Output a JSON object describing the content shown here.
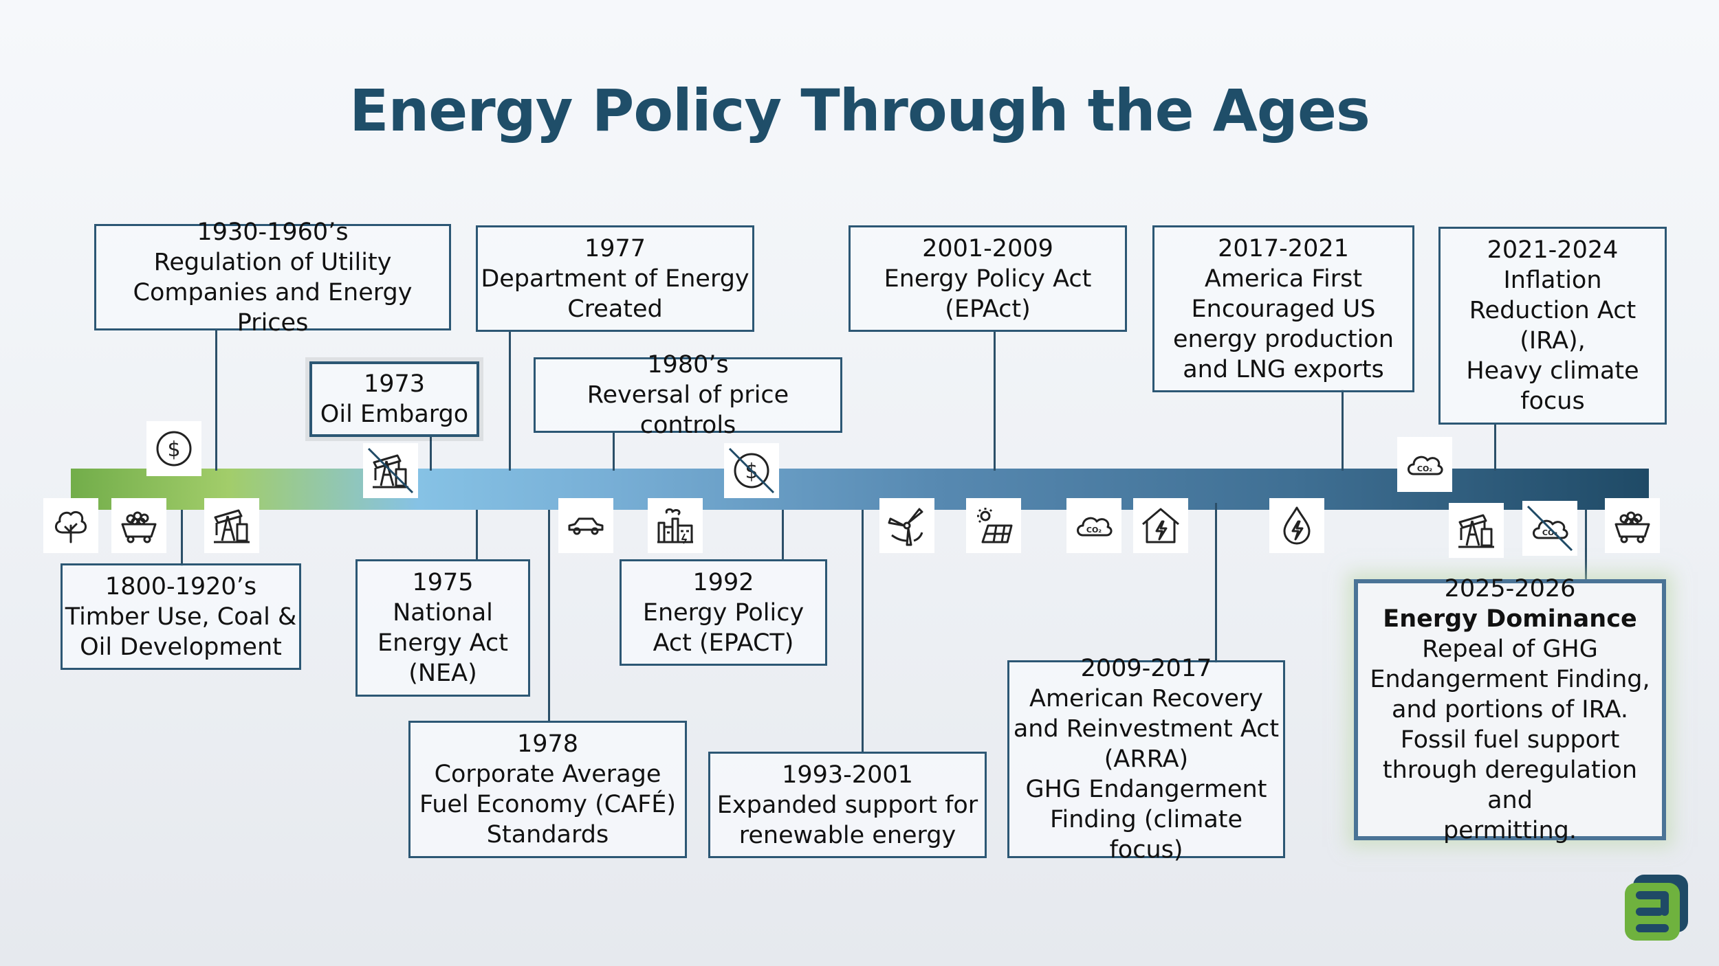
{
  "title": "Energy Policy Through the Ages",
  "events": {
    "e1800": {
      "date": "1800-1920’s",
      "lines": [
        "Timber Use, Coal &",
        "Oil Development"
      ]
    },
    "e1930": {
      "date": "1930-1960’s",
      "lines": [
        "Regulation of Utility",
        "Companies and Energy Prices"
      ]
    },
    "e1973": {
      "date": "1973",
      "lines": [
        "Oil Embargo"
      ]
    },
    "e1975": {
      "date": "1975",
      "lines": [
        "National",
        "Energy Act",
        "(NEA)"
      ]
    },
    "e1977": {
      "date": "1977",
      "lines": [
        "Department of Energy",
        "Created"
      ]
    },
    "e1978": {
      "date": "1978",
      "lines": [
        "Corporate Average",
        "Fuel Economy (CAFÉ)",
        "Standards"
      ]
    },
    "e1980": {
      "date": "1980’s",
      "lines": [
        "Reversal of price controls"
      ]
    },
    "e1992": {
      "date": "1992",
      "lines": [
        "Energy Policy",
        "Act (EPACT)"
      ]
    },
    "e1993": {
      "date": "1993-2001",
      "lines": [
        "Expanded support for",
        "renewable energy"
      ]
    },
    "e2001": {
      "date": "2001-2009",
      "lines": [
        "Energy Policy Act",
        "(EPAct)"
      ]
    },
    "e2009": {
      "date": "2009-2017",
      "lines": [
        "American Recovery",
        "and Reinvestment Act",
        "(ARRA)",
        "GHG Endangerment",
        "Finding (climate focus)"
      ]
    },
    "e2017": {
      "date": "2017-2021",
      "lines": [
        "America First",
        "Encouraged US",
        "energy production",
        "and LNG exports"
      ]
    },
    "e2021": {
      "date": "2021-2024",
      "lines": [
        "Inflation",
        "Reduction Act",
        "(IRA),",
        "Heavy climate",
        "focus"
      ]
    },
    "e2025": {
      "date": "2025-2026",
      "headline": "Energy Dominance",
      "lines": [
        "Repeal of GHG",
        "Endangerment Finding,",
        "and portions of IRA.",
        "Fossil fuel support",
        "through deregulation and",
        "permitting."
      ]
    }
  },
  "icons": {
    "tree": "tree-icon",
    "coal": "coal-cart-icon",
    "dollar": "dollar-icon",
    "pump": "oil-pump-icon",
    "no_pump": "no-oil-pump-icon",
    "car": "car-icon",
    "factory": "factory-icon",
    "no_dollar": "no-dollar-icon",
    "wind": "wind-turbine-icon",
    "solar": "solar-panel-icon",
    "cloud": "co2-cloud-icon",
    "co2_label": "CO₂",
    "house": "energy-house-icon",
    "drop": "energy-drop-icon",
    "no_cloud": "no-co2-cloud-icon"
  },
  "colors": {
    "title": "#1f4e69",
    "box_border": "#2c5774",
    "bar_start": "#72ad4a",
    "bar_mid": "#86c2e5",
    "bar_end": "#1f4a66",
    "logo_green": "#6fb23e",
    "logo_navy": "#1f4a66"
  }
}
